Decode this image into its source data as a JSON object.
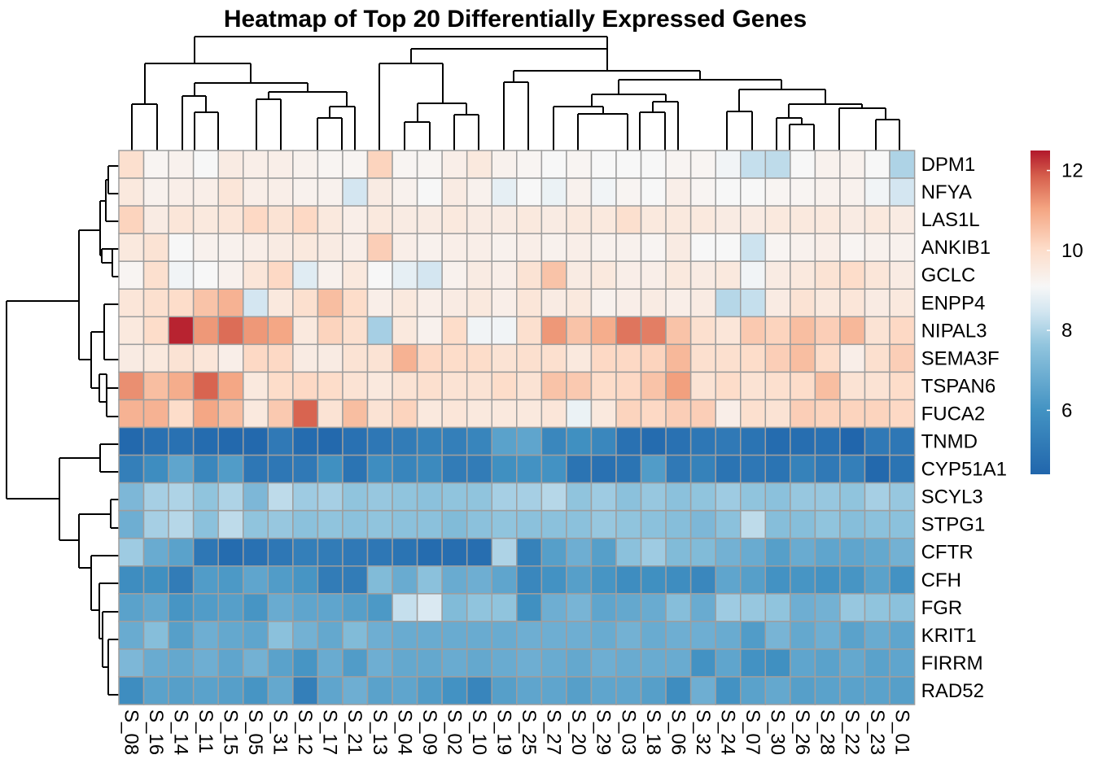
{
  "chart_data": {
    "type": "heatmap",
    "title": "Heatmap of Top 20 Differentially Expressed Genes",
    "columns": [
      "S_08",
      "S_16",
      "S_14",
      "S_11",
      "S_15",
      "S_05",
      "S_31",
      "S_12",
      "S_17",
      "S_21",
      "S_13",
      "S_04",
      "S_09",
      "S_02",
      "S_10",
      "S_19",
      "S_25",
      "S_27",
      "S_20",
      "S_29",
      "S_03",
      "S_18",
      "S_06",
      "S_32",
      "S_24",
      "S_07",
      "S_30",
      "S_26",
      "S_28",
      "S_22",
      "S_23",
      "S_01"
    ],
    "rows": [
      "DPM1",
      "NFYA",
      "LAS1L",
      "ANKIB1",
      "GCLC",
      "ENPP4",
      "NIPAL3",
      "SEMA3F",
      "TSPAN6",
      "FUCA2",
      "TNMD",
      "CYP51A1",
      "SCYL3",
      "STPG1",
      "CFTR",
      "CFH",
      "FGR",
      "KRIT1",
      "FIRRM",
      "RAD52"
    ],
    "values": [
      [
        9.9,
        9.2,
        9.3,
        9.1,
        9.5,
        9.4,
        9.4,
        9.3,
        9.2,
        9.2,
        10.2,
        9.2,
        9.2,
        9.4,
        9.6,
        9.3,
        9.2,
        9.1,
        9.2,
        9.1,
        9.1,
        9.1,
        9.2,
        9.2,
        9.0,
        8.3,
        8.2,
        9.1,
        9.3,
        9.3,
        9.1,
        8.0
      ],
      [
        9.6,
        9.3,
        9.4,
        9.4,
        9.7,
        9.4,
        9.4,
        9.3,
        9.3,
        8.5,
        9.5,
        9.3,
        9.1,
        9.5,
        9.3,
        8.8,
        9.1,
        8.9,
        9.3,
        9.0,
        9.2,
        9.1,
        9.4,
        9.2,
        9.1,
        9.1,
        9.2,
        9.2,
        9.3,
        9.3,
        9.0,
        8.5
      ],
      [
        10.2,
        9.5,
        9.7,
        9.6,
        9.7,
        10.1,
        9.8,
        10.1,
        9.6,
        9.4,
        9.6,
        9.5,
        9.5,
        9.6,
        9.5,
        9.5,
        9.6,
        9.5,
        9.6,
        9.6,
        9.9,
        9.6,
        9.6,
        9.6,
        9.5,
        9.5,
        9.6,
        9.6,
        9.6,
        9.5,
        9.6,
        9.5
      ],
      [
        9.6,
        9.8,
        9.1,
        9.3,
        9.3,
        9.4,
        9.5,
        9.6,
        9.5,
        9.4,
        10.3,
        9.4,
        9.3,
        9.4,
        9.4,
        9.3,
        9.4,
        9.3,
        9.4,
        9.3,
        9.3,
        9.2,
        9.5,
        9.1,
        9.1,
        8.4,
        9.2,
        9.3,
        9.4,
        9.2,
        9.3,
        9.3
      ],
      [
        9.2,
        9.9,
        9.0,
        9.1,
        9.3,
        9.7,
        10.1,
        8.7,
        9.3,
        9.6,
        9.1,
        8.8,
        8.5,
        9.3,
        9.5,
        9.4,
        9.8,
        10.5,
        9.5,
        9.6,
        9.4,
        9.4,
        9.6,
        9.5,
        9.6,
        9.0,
        9.5,
        9.6,
        9.8,
        10.0,
        9.7,
        9.5
      ],
      [
        9.7,
        9.9,
        10.0,
        10.5,
        10.8,
        8.5,
        9.6,
        9.9,
        10.6,
        10.0,
        9.4,
        9.6,
        9.4,
        9.5,
        9.6,
        9.4,
        9.7,
        9.5,
        9.6,
        9.3,
        9.4,
        9.5,
        9.4,
        9.5,
        8.1,
        8.3,
        9.5,
        9.8,
        9.6,
        9.7,
        9.5,
        9.6
      ],
      [
        9.6,
        10.0,
        12.4,
        11.2,
        11.7,
        11.2,
        11.0,
        9.6,
        10.2,
        9.9,
        7.9,
        9.6,
        9.3,
        10.0,
        9.0,
        9.0,
        9.9,
        11.2,
        10.5,
        10.9,
        11.6,
        11.5,
        10.5,
        9.9,
        9.7,
        10.4,
        10.2,
        10.6,
        10.3,
        10.7,
        9.8,
        10.1
      ],
      [
        9.5,
        9.6,
        9.8,
        9.7,
        9.4,
        10.1,
        10.1,
        9.5,
        9.5,
        9.8,
        9.8,
        10.8,
        10.1,
        10.0,
        10.0,
        9.8,
        9.9,
        9.9,
        9.6,
        10.1,
        10.1,
        10.2,
        10.7,
        9.9,
        9.9,
        10.0,
        10.3,
        10.6,
        10.0,
        9.4,
        9.9,
        10.3
      ],
      [
        11.3,
        10.6,
        10.9,
        11.8,
        11.0,
        9.6,
        10.0,
        10.1,
        10.0,
        9.8,
        9.6,
        9.8,
        9.9,
        9.8,
        9.8,
        10.0,
        9.8,
        10.5,
        10.4,
        10.0,
        10.1,
        10.5,
        11.1,
        9.8,
        10.0,
        9.8,
        9.9,
        10.0,
        10.6,
        9.8,
        9.8,
        10.0
      ],
      [
        10.8,
        10.8,
        10.0,
        11.0,
        10.6,
        9.6,
        10.4,
        11.8,
        9.8,
        10.6,
        9.8,
        10.2,
        9.6,
        9.7,
        9.6,
        9.6,
        9.6,
        9.7,
        8.9,
        9.6,
        10.2,
        10.1,
        10.3,
        10.3,
        9.4,
        9.9,
        9.8,
        10.3,
        10.2,
        10.2,
        10.2,
        10.1
      ],
      [
        4.5,
        4.8,
        4.8,
        4.6,
        4.5,
        4.5,
        5.1,
        4.6,
        4.5,
        4.8,
        5.0,
        5.2,
        5.4,
        5.3,
        5.5,
        6.5,
        6.6,
        5.6,
        5.9,
        5.6,
        4.8,
        4.6,
        4.8,
        5.0,
        5.1,
        4.9,
        4.6,
        4.7,
        4.8,
        4.4,
        5.1,
        5.0
      ],
      [
        5.3,
        5.8,
        6.6,
        5.6,
        6.3,
        5.0,
        5.0,
        5.1,
        5.9,
        4.9,
        5.8,
        5.5,
        5.7,
        5.2,
        5.2,
        5.9,
        6.0,
        6.0,
        4.9,
        4.8,
        4.9,
        6.3,
        5.1,
        5.4,
        4.9,
        5.0,
        4.9,
        5.4,
        5.1,
        5.3,
        4.5,
        4.9
      ],
      [
        7.2,
        7.9,
        8.0,
        7.6,
        8.0,
        7.2,
        8.2,
        7.8,
        7.9,
        7.6,
        7.7,
        7.6,
        7.5,
        7.6,
        7.6,
        7.9,
        7.9,
        8.1,
        7.6,
        7.8,
        7.5,
        7.7,
        7.5,
        7.6,
        7.8,
        7.6,
        7.5,
        7.7,
        7.7,
        7.6,
        7.9,
        7.7
      ],
      [
        6.9,
        7.9,
        8.1,
        7.5,
        8.2,
        7.6,
        7.7,
        7.5,
        7.6,
        7.5,
        7.6,
        7.5,
        7.5,
        7.3,
        7.5,
        7.6,
        7.5,
        7.5,
        7.5,
        7.7,
        7.6,
        7.5,
        7.4,
        7.2,
        7.5,
        8.2,
        7.4,
        7.4,
        7.6,
        7.4,
        7.5,
        7.5
      ],
      [
        7.8,
        6.8,
        6.5,
        5.0,
        4.6,
        4.8,
        5.0,
        5.3,
        5.2,
        5.1,
        5.0,
        4.9,
        4.6,
        4.7,
        4.7,
        8.0,
        5.4,
        6.4,
        6.9,
        6.4,
        7.5,
        7.8,
        7.3,
        7.3,
        7.0,
        6.8,
        6.4,
        6.8,
        6.6,
        6.6,
        6.7,
        7.0
      ],
      [
        5.8,
        5.9,
        5.2,
        6.3,
        6.2,
        6.6,
        6.3,
        6.1,
        5.2,
        5.2,
        7.3,
        6.8,
        7.5,
        6.8,
        6.9,
        6.6,
        5.6,
        6.0,
        6.4,
        6.1,
        5.8,
        5.9,
        5.8,
        5.6,
        6.6,
        6.4,
        6.0,
        6.1,
        6.0,
        6.1,
        6.5,
        6.0
      ],
      [
        6.5,
        6.7,
        6.1,
        6.3,
        6.4,
        6.1,
        6.8,
        6.6,
        6.6,
        6.4,
        6.2,
        8.3,
        8.6,
        7.3,
        7.6,
        7.6,
        5.9,
        6.9,
        7.1,
        6.6,
        6.7,
        6.8,
        7.4,
        6.8,
        7.8,
        7.7,
        7.6,
        6.9,
        7.0,
        7.7,
        7.6,
        7.5
      ],
      [
        6.8,
        7.4,
        6.4,
        6.9,
        6.7,
        6.6,
        7.5,
        7.0,
        6.7,
        7.3,
        6.9,
        6.8,
        6.8,
        6.8,
        6.8,
        6.8,
        6.9,
        6.9,
        6.9,
        6.8,
        7.0,
        6.8,
        6.9,
        6.9,
        6.8,
        6.3,
        7.1,
        6.7,
        6.9,
        6.5,
        6.8,
        6.6
      ],
      [
        7.2,
        6.8,
        6.7,
        6.9,
        6.6,
        7.0,
        6.5,
        6.1,
        6.8,
        6.3,
        6.9,
        6.7,
        6.7,
        6.8,
        6.7,
        6.8,
        6.9,
        6.8,
        6.7,
        6.9,
        6.8,
        6.8,
        6.8,
        6.0,
        6.6,
        6.0,
        5.9,
        6.6,
        6.5,
        6.7,
        6.5,
        6.6
      ],
      [
        5.8,
        6.5,
        6.4,
        6.5,
        6.4,
        6.1,
        6.7,
        5.3,
        6.6,
        6.9,
        6.5,
        6.6,
        6.3,
        6.0,
        5.5,
        6.4,
        6.6,
        6.6,
        6.4,
        6.6,
        6.6,
        6.4,
        5.8,
        6.9,
        6.0,
        6.5,
        6.7,
        6.4,
        6.5,
        6.5,
        6.5,
        6.4
      ]
    ],
    "color_scale": {
      "min": 4.4,
      "max": 12.5,
      "low_color": "#2166AC",
      "mid_color": "#F7F7F7",
      "high_color": "#B2182B",
      "ticks": [
        6,
        8,
        10,
        12
      ],
      "tick_labels": [
        "6",
        "8",
        "10",
        "12"
      ]
    },
    "cell_border_color": "#9E9E9E",
    "legend_position": "right",
    "dendrograms": {
      "rows": true,
      "columns": true
    }
  }
}
